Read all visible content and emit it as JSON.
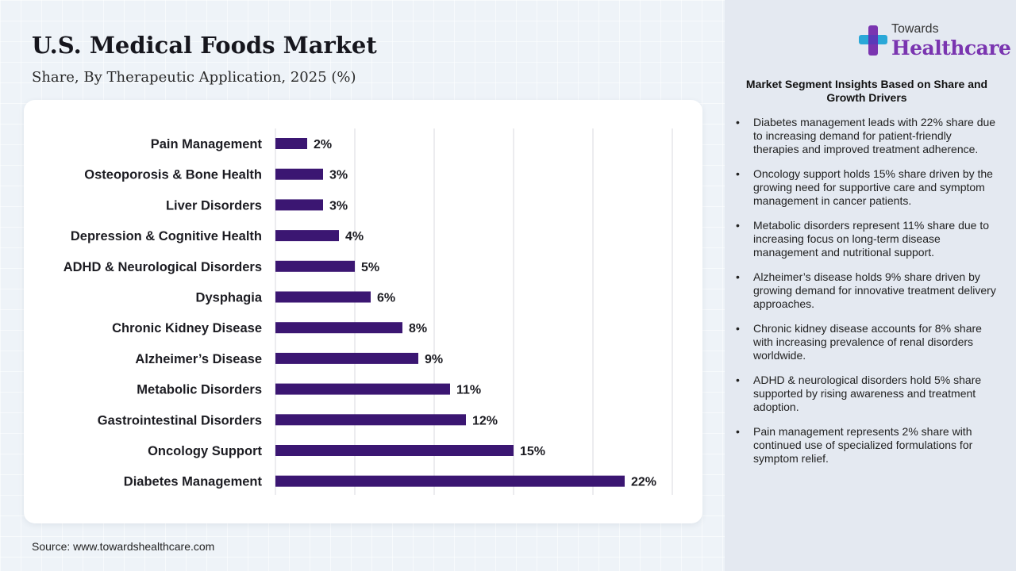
{
  "title": "U.S. Medical Foods Market",
  "subtitle": "Share, By Therapeutic Application, 2025 (%)",
  "source": "Source: www.towardshealthcare.com",
  "brand": {
    "top": "Towards",
    "main": "Healthcare"
  },
  "colors": {
    "bar": "#3b1672",
    "brand": "#7a35b0",
    "panel": "#e4e9f1"
  },
  "panel": {
    "heading": "Market Segment Insights Based on Share and Growth Drivers",
    "bullets": [
      "Diabetes management leads with 22% share due to increasing demand for patient-friendly therapies and improved treatment adherence.",
      "Oncology support holds 15% share driven by the growing need for supportive care and symptom management in cancer patients.",
      "Metabolic disorders represent 11% share due to increasing focus on long-term disease management and nutritional support.",
      "Alzheimer’s disease holds 9% share driven by growing demand for innovative treatment delivery approaches.",
      "Chronic kidney disease accounts for 8% share with increasing prevalence of renal disorders worldwide.",
      "ADHD & neurological disorders hold 5% share supported by rising awareness and treatment adoption.",
      "Pain management represents 2% share with continued use of specialized formulations for symptom relief."
    ]
  },
  "chart_data": {
    "type": "bar",
    "orientation": "horizontal",
    "title": "U.S. Medical Foods Market",
    "subtitle": "Share, By Therapeutic Application, 2025 (%)",
    "categories": [
      "Pain Management",
      "Osteoporosis & Bone Health",
      "Liver Disorders",
      "Depression & Cognitive Health",
      "ADHD & Neurological Disorders",
      "Dysphagia",
      "Chronic Kidney Disease",
      "Alzheimer’s Disease",
      "Metabolic Disorders",
      "Gastrointestinal Disorders",
      "Oncology Support",
      "Diabetes Management"
    ],
    "values": [
      2,
      3,
      3,
      4,
      5,
      6,
      8,
      9,
      11,
      12,
      15,
      22
    ],
    "value_labels": [
      "2%",
      "3%",
      "3%",
      "4%",
      "5%",
      "6%",
      "8%",
      "9%",
      "11%",
      "12%",
      "15%",
      "22%"
    ],
    "xlim": [
      0,
      25
    ],
    "grid": true,
    "legend": "none"
  }
}
